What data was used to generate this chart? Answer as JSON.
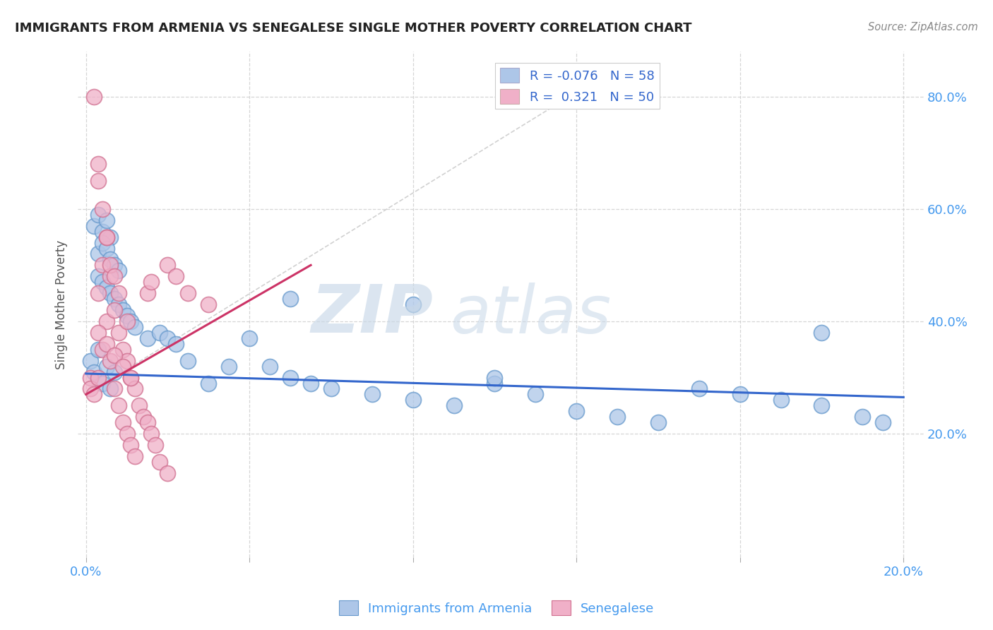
{
  "title": "IMMIGRANTS FROM ARMENIA VS SENEGALESE SINGLE MOTHER POVERTY CORRELATION CHART",
  "source": "Source: ZipAtlas.com",
  "ylabel": "Single Mother Poverty",
  "xlim": [
    -0.002,
    0.205
  ],
  "ylim": [
    -0.02,
    0.88
  ],
  "xtick_positions": [
    0.0,
    0.04,
    0.08,
    0.12,
    0.16,
    0.2
  ],
  "xtick_labels": [
    "0.0%",
    "",
    "",
    "",
    "",
    "20.0%"
  ],
  "ytick_vals": [
    0.2,
    0.4,
    0.6,
    0.8
  ],
  "ytick_labels": [
    "20.0%",
    "40.0%",
    "60.0%",
    "80.0%"
  ],
  "armenia_color": "#adc6e8",
  "armenia_edge": "#6699cc",
  "senegal_color": "#f0b0c8",
  "senegal_edge": "#d07090",
  "armenia_R": -0.076,
  "armenia_N": 58,
  "senegal_R": 0.321,
  "senegal_N": 50,
  "legend_label_armenia": "Immigrants from Armenia",
  "legend_label_senegal": "Senegalese",
  "watermark_zip": "ZIP",
  "watermark_atlas": "atlas",
  "armenia_line_color": "#3366cc",
  "senegal_line_color": "#cc3366",
  "diagonal_color": "#cccccc",
  "armenia_scatter_x": [
    0.001,
    0.002,
    0.003,
    0.004,
    0.005,
    0.006,
    0.007,
    0.002,
    0.003,
    0.004,
    0.005,
    0.006,
    0.003,
    0.004,
    0.005,
    0.006,
    0.007,
    0.008,
    0.003,
    0.004,
    0.005,
    0.006,
    0.007,
    0.008,
    0.009,
    0.01,
    0.011,
    0.012,
    0.015,
    0.018,
    0.02,
    0.022,
    0.025,
    0.03,
    0.035,
    0.04,
    0.045,
    0.05,
    0.055,
    0.06,
    0.07,
    0.08,
    0.09,
    0.1,
    0.11,
    0.12,
    0.13,
    0.14,
    0.15,
    0.16,
    0.17,
    0.18,
    0.19,
    0.195,
    0.05,
    0.08,
    0.1,
    0.18
  ],
  "armenia_scatter_y": [
    0.33,
    0.31,
    0.35,
    0.29,
    0.32,
    0.28,
    0.31,
    0.57,
    0.59,
    0.56,
    0.58,
    0.55,
    0.52,
    0.54,
    0.53,
    0.51,
    0.5,
    0.49,
    0.48,
    0.47,
    0.46,
    0.45,
    0.44,
    0.43,
    0.42,
    0.41,
    0.4,
    0.39,
    0.37,
    0.38,
    0.37,
    0.36,
    0.33,
    0.29,
    0.32,
    0.37,
    0.32,
    0.3,
    0.29,
    0.28,
    0.27,
    0.26,
    0.25,
    0.29,
    0.27,
    0.24,
    0.23,
    0.22,
    0.28,
    0.27,
    0.26,
    0.25,
    0.23,
    0.22,
    0.44,
    0.43,
    0.3,
    0.38
  ],
  "senegal_scatter_x": [
    0.001,
    0.001,
    0.002,
    0.003,
    0.003,
    0.004,
    0.004,
    0.005,
    0.005,
    0.006,
    0.006,
    0.007,
    0.007,
    0.008,
    0.008,
    0.009,
    0.009,
    0.01,
    0.01,
    0.011,
    0.011,
    0.012,
    0.012,
    0.013,
    0.014,
    0.015,
    0.016,
    0.017,
    0.018,
    0.02,
    0.003,
    0.004,
    0.005,
    0.006,
    0.007,
    0.008,
    0.02,
    0.025,
    0.03,
    0.002,
    0.003,
    0.01,
    0.015,
    0.022,
    0.016,
    0.003,
    0.005,
    0.007,
    0.009,
    0.011
  ],
  "senegal_scatter_y": [
    0.3,
    0.28,
    0.27,
    0.45,
    0.3,
    0.5,
    0.35,
    0.55,
    0.4,
    0.48,
    0.33,
    0.42,
    0.28,
    0.38,
    0.25,
    0.35,
    0.22,
    0.33,
    0.2,
    0.3,
    0.18,
    0.28,
    0.16,
    0.25,
    0.23,
    0.22,
    0.2,
    0.18,
    0.15,
    0.13,
    0.65,
    0.6,
    0.55,
    0.5,
    0.48,
    0.45,
    0.5,
    0.45,
    0.43,
    0.8,
    0.68,
    0.4,
    0.45,
    0.48,
    0.47,
    0.38,
    0.36,
    0.34,
    0.32,
    0.3
  ],
  "armenia_trend_x": [
    0.0,
    0.2
  ],
  "armenia_trend_y": [
    0.307,
    0.265
  ],
  "senegal_trend_x": [
    0.0,
    0.055
  ],
  "senegal_trend_y": [
    0.27,
    0.5
  ]
}
